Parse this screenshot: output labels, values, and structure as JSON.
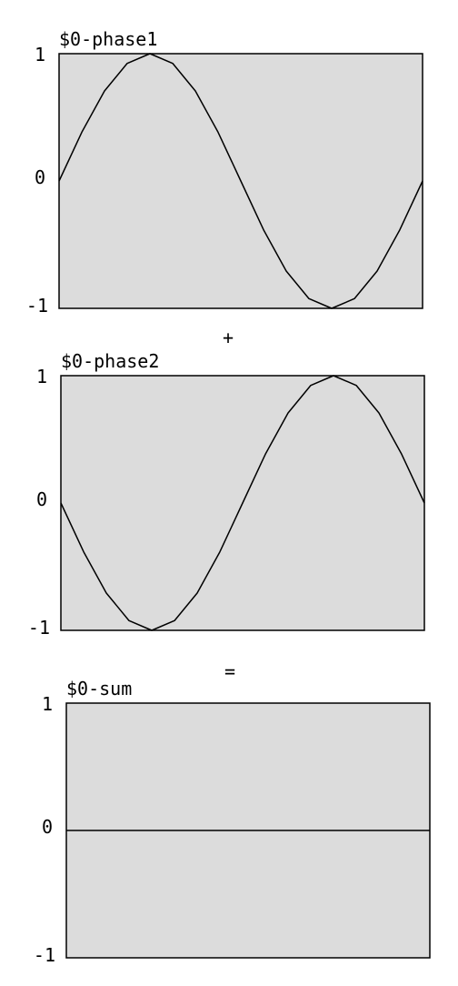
{
  "chart_data": [
    {
      "type": "line",
      "title": "$0-phase1",
      "ylim": [
        -1,
        1
      ],
      "yticks": [
        "1",
        "0",
        "-1"
      ],
      "xlim": [
        0,
        1
      ],
      "series": [
        {
          "x": [
            0,
            0.0625,
            0.125,
            0.1875,
            0.25,
            0.3125,
            0.375,
            0.4375,
            0.5,
            0.5625,
            0.625,
            0.6875,
            0.75,
            0.8125,
            0.875,
            0.9375,
            1
          ],
          "y": [
            0,
            0.383,
            0.707,
            0.924,
            1,
            0.924,
            0.707,
            0.383,
            0,
            -0.383,
            -0.707,
            -0.924,
            -1,
            -0.924,
            -0.707,
            -0.383,
            0
          ]
        }
      ]
    },
    {
      "type": "line",
      "title": "$0-phase2",
      "ylim": [
        -1,
        1
      ],
      "yticks": [
        "1",
        "0",
        "-1"
      ],
      "xlim": [
        0,
        1
      ],
      "series": [
        {
          "x": [
            0,
            0.0625,
            0.125,
            0.1875,
            0.25,
            0.3125,
            0.375,
            0.4375,
            0.5,
            0.5625,
            0.625,
            0.6875,
            0.75,
            0.8125,
            0.875,
            0.9375,
            1
          ],
          "y": [
            0,
            -0.383,
            -0.707,
            -0.924,
            -1,
            -0.924,
            -0.707,
            -0.383,
            0,
            0.383,
            0.707,
            0.924,
            1,
            0.924,
            0.707,
            0.383,
            0
          ]
        }
      ]
    },
    {
      "type": "line",
      "title": "$0-sum",
      "ylim": [
        -1,
        1
      ],
      "yticks": [
        "1",
        "0",
        "-1"
      ],
      "xlim": [
        0,
        1
      ],
      "series": [
        {
          "x": [
            0,
            1
          ],
          "y": [
            0,
            0
          ]
        }
      ]
    }
  ],
  "operators": [
    "+",
    "="
  ],
  "colors": {
    "plot_background": "#dcdcdc",
    "line": "#000000",
    "frame": "#000000"
  }
}
